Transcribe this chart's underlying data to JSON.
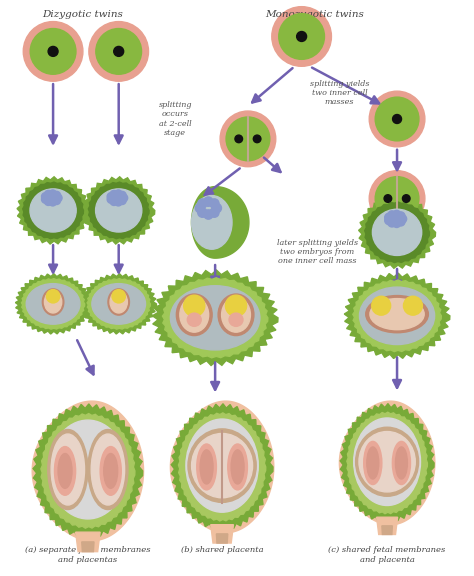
{
  "title_left": "Dizygotic twins",
  "title_right": "Monozygotic twins",
  "label_a": "(a) separate fetal membranes\nand placentas",
  "label_b": "(b) shared placenta",
  "label_c": "(c) shared fetal membranes\nand placenta",
  "text_splitting_2cell": "splitting\noccurs\nat 2-cell\nstage",
  "text_splitting_yields": "splitting yields\ntwo inner cell\nmasses",
  "text_later_splitting": "later splitting yields\ntwo embryos from\none inner cell mass",
  "arrow_color": "#7060b0",
  "bg_color": "#ffffff",
  "cell_outer": "#e8a090",
  "cell_inner": "#88b840",
  "cell_nucleus": "#111111",
  "cell_divider": "#c0a890",
  "blasto_spiky": "#78aa38",
  "blasto_ring": "#5a8a28",
  "blasto_cavity": "#b8c8cc",
  "blasto_mass": "#8899cc",
  "uterus_skin": "#f0c0a0",
  "uterus_green": "#78aa38",
  "uterus_cavity": "#b0bcc0",
  "uterus_amnion": "#e8c8b0",
  "uterus_membrane_line": "#c08060",
  "yolk_color": "#e8d040",
  "placenta_color": "#e8b090",
  "fetus_color": "#e8a898",
  "fetus_inner": "#d89888"
}
